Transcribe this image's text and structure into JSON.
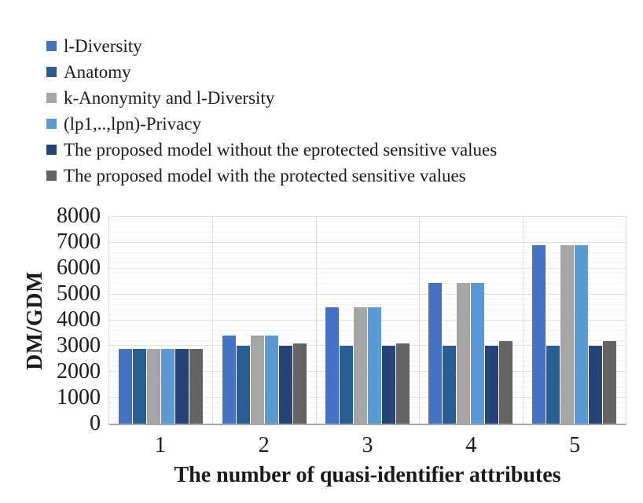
{
  "chart_data": {
    "type": "bar",
    "title": "",
    "xlabel": "The number of quasi-identifier attributes",
    "ylabel": "DM/GDM",
    "categories": [
      "1",
      "2",
      "3",
      "4",
      "5"
    ],
    "series": [
      {
        "name": "l-Diversity",
        "color": "#4472C4",
        "values": [
          2900,
          3400,
          4500,
          5450,
          6900
        ]
      },
      {
        "name": "Anatomy",
        "color": "#275E94",
        "values": [
          2900,
          3000,
          3000,
          3000,
          3000
        ]
      },
      {
        "name": "k-Anonymity and l-Diversity",
        "color": "#A5A5A5",
        "values": [
          2900,
          3400,
          4500,
          5450,
          6900
        ]
      },
      {
        "name": "(lp1,..,lpn)-Privacy",
        "color": "#5B9BD5",
        "values": [
          2900,
          3400,
          4500,
          5450,
          6900
        ]
      },
      {
        "name": "The proposed model without the eprotected sensitive values",
        "color": "#264478",
        "values": [
          2900,
          3000,
          3000,
          3000,
          3000
        ]
      },
      {
        "name": "The proposed model with the protected sensitive values",
        "color": "#636363",
        "values": [
          2900,
          3100,
          3100,
          3200,
          3200
        ]
      }
    ],
    "ylim": [
      0,
      8000
    ],
    "yticks": [
      0,
      1000,
      2000,
      3000,
      4000,
      5000,
      6000,
      7000,
      8000
    ],
    "minor_gridline_step": 200,
    "grid": true,
    "legend_position": "top-left"
  }
}
